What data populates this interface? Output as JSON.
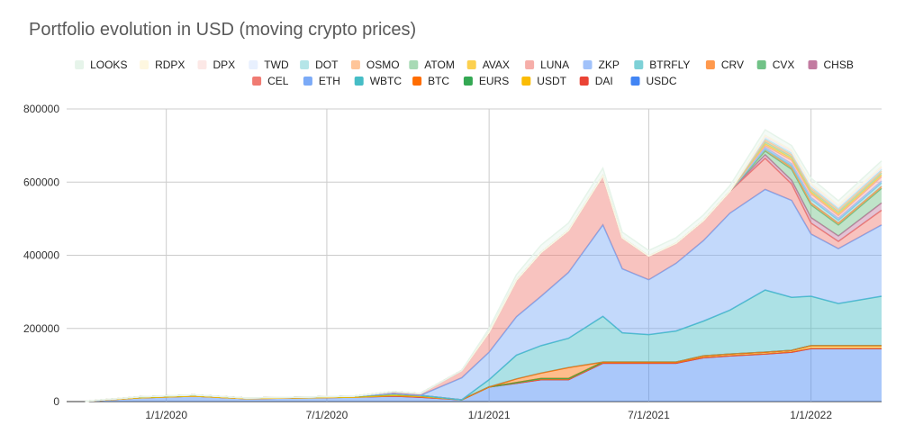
{
  "chart_data": {
    "type": "area",
    "stacked": true,
    "title": "Portfolio evolution in USD (moving crypto prices)",
    "xlabel": "",
    "ylabel": "",
    "x_range": [
      "2019-09-10",
      "2022-03-22"
    ],
    "x_ticks": [
      {
        "date": "2020-01-01",
        "label": "1/1/2020"
      },
      {
        "date": "2020-07-01",
        "label": "7/1/2020"
      },
      {
        "date": "2021-01-01",
        "label": "1/1/2021"
      },
      {
        "date": "2021-07-01",
        "label": "7/1/2021"
      },
      {
        "date": "2022-01-01",
        "label": "1/1/2022"
      }
    ],
    "ylim": [
      0,
      800000
    ],
    "y_ticks": [
      {
        "value": 0,
        "label": "0"
      },
      {
        "value": 200000,
        "label": "200000"
      },
      {
        "value": 400000,
        "label": "400000"
      },
      {
        "value": 600000,
        "label": "600000"
      },
      {
        "value": 800000,
        "label": "800000"
      }
    ],
    "grid": "vertical and horizontal",
    "legend_position": "top",
    "legend_order": [
      "LOOKS",
      "RDPX",
      "DPX",
      "TWD",
      "DOT",
      "OSMO",
      "ATOM",
      "AVAX",
      "LUNA",
      "ZKP",
      "BTRFLY",
      "CRV",
      "CVX",
      "CHSB",
      "CEL",
      "ETH",
      "WBTC",
      "BTC",
      "EURS",
      "USDT",
      "DAI",
      "USDC"
    ],
    "dates": [
      "2019-10-01",
      "2019-12-01",
      "2020-02-01",
      "2020-04-01",
      "2020-06-01",
      "2020-08-01",
      "2020-09-15",
      "2020-10-15",
      "2020-12-01",
      "2021-01-01",
      "2021-02-01",
      "2021-03-01",
      "2021-04-01",
      "2021-05-10",
      "2021-06-01",
      "2021-07-01",
      "2021-08-01",
      "2021-09-01",
      "2021-10-01",
      "2021-11-10",
      "2021-12-10",
      "2022-01-01",
      "2022-02-01",
      "2022-03-22"
    ],
    "series": [
      {
        "name": "USDC",
        "color": "#4285f4",
        "values": [
          1000,
          10000,
          15000,
          8000,
          10000,
          12000,
          15000,
          12000,
          5000,
          40000,
          50000,
          60000,
          60000,
          105000,
          105000,
          105000,
          105000,
          120000,
          125000,
          130000,
          135000,
          145000,
          145000,
          145000
        ]
      },
      {
        "name": "DAI",
        "color": "#ea4335",
        "values": [
          0,
          0,
          0,
          0,
          0,
          0,
          0,
          0,
          0,
          0,
          0,
          0,
          0,
          0,
          0,
          0,
          0,
          0,
          0,
          0,
          0,
          0,
          0,
          0
        ]
      },
      {
        "name": "USDT",
        "color": "#fbbc04",
        "values": [
          0,
          0,
          0,
          0,
          0,
          0,
          2000,
          2000,
          0,
          0,
          2000,
          3000,
          3000,
          3000,
          3000,
          3000,
          3000,
          5000,
          5000,
          5000,
          5000,
          8000,
          8000,
          8000
        ]
      },
      {
        "name": "EURS",
        "color": "#34a853",
        "values": [
          0,
          3000,
          3000,
          2000,
          2000,
          3000,
          5000,
          3000,
          0,
          0,
          0,
          0,
          0,
          0,
          0,
          0,
          0,
          0,
          0,
          0,
          0,
          0,
          0,
          0
        ]
      },
      {
        "name": "BTC",
        "color": "#ff6d01",
        "values": [
          0,
          0,
          0,
          0,
          0,
          0,
          0,
          0,
          0,
          0,
          10000,
          15000,
          30000,
          0,
          0,
          0,
          0,
          0,
          0,
          0,
          0,
          0,
          0,
          0
        ]
      },
      {
        "name": "WBTC",
        "color": "#46bdc6",
        "values": [
          0,
          0,
          0,
          0,
          0,
          0,
          0,
          0,
          0,
          20000,
          65000,
          75000,
          80000,
          125000,
          80000,
          75000,
          85000,
          95000,
          120000,
          170000,
          145000,
          135000,
          115000,
          135000
        ]
      },
      {
        "name": "ETH",
        "color": "#7baaf7",
        "values": [
          0,
          0,
          0,
          0,
          0,
          0,
          0,
          0,
          60000,
          75000,
          105000,
          135000,
          180000,
          250000,
          175000,
          150000,
          185000,
          220000,
          265000,
          275000,
          265000,
          170000,
          150000,
          195000
        ]
      },
      {
        "name": "CEL",
        "color": "#f07b72",
        "values": [
          0,
          0,
          0,
          0,
          0,
          0,
          5000,
          5000,
          20000,
          55000,
          100000,
          120000,
          115000,
          135000,
          85000,
          65000,
          55000,
          55000,
          60000,
          85000,
          45000,
          30000,
          20000,
          40000
        ]
      },
      {
        "name": "CHSB",
        "color": "#c27ba0",
        "values": [
          0,
          0,
          0,
          0,
          0,
          0,
          0,
          0,
          0,
          0,
          0,
          0,
          0,
          0,
          0,
          0,
          0,
          0,
          0,
          10000,
          10000,
          15000,
          15000,
          20000
        ]
      },
      {
        "name": "CVX",
        "color": "#71c287",
        "values": [
          0,
          0,
          0,
          0,
          0,
          0,
          0,
          0,
          0,
          0,
          0,
          0,
          0,
          0,
          0,
          0,
          0,
          0,
          0,
          10000,
          30000,
          35000,
          30000,
          40000
        ]
      },
      {
        "name": "CRV",
        "color": "#ff994d",
        "values": [
          0,
          0,
          0,
          0,
          0,
          0,
          0,
          0,
          0,
          0,
          0,
          0,
          0,
          0,
          0,
          0,
          0,
          0,
          0,
          5000,
          5000,
          5000,
          5000,
          5000
        ]
      },
      {
        "name": "BTRFLY",
        "color": "#7ed1d7",
        "values": [
          0,
          0,
          0,
          0,
          0,
          0,
          0,
          0,
          0,
          0,
          0,
          0,
          0,
          0,
          0,
          0,
          0,
          0,
          0,
          0,
          5000,
          10000,
          8000,
          10000
        ]
      },
      {
        "name": "ZKP",
        "color": "#a1c2fa",
        "values": [
          0,
          0,
          0,
          0,
          0,
          0,
          0,
          0,
          0,
          0,
          0,
          0,
          0,
          0,
          0,
          0,
          0,
          0,
          0,
          5000,
          5000,
          5000,
          5000,
          5000
        ]
      },
      {
        "name": "LUNA",
        "color": "#f6aea9",
        "values": [
          0,
          0,
          0,
          0,
          0,
          0,
          0,
          0,
          0,
          0,
          0,
          0,
          0,
          0,
          0,
          0,
          0,
          0,
          0,
          5000,
          10000,
          10000,
          8000,
          12000
        ]
      },
      {
        "name": "AVAX",
        "color": "#fcd04f",
        "values": [
          0,
          0,
          0,
          0,
          0,
          0,
          0,
          0,
          0,
          0,
          0,
          0,
          0,
          0,
          0,
          0,
          0,
          0,
          0,
          5000,
          5000,
          5000,
          5000,
          5000
        ]
      },
      {
        "name": "ATOM",
        "color": "#a8dab5",
        "values": [
          0,
          0,
          0,
          0,
          0,
          0,
          0,
          0,
          0,
          0,
          0,
          0,
          0,
          0,
          0,
          0,
          0,
          0,
          0,
          5000,
          5000,
          5000,
          5000,
          5000
        ]
      },
      {
        "name": "OSMO",
        "color": "#ffc599",
        "values": [
          0,
          0,
          0,
          0,
          0,
          0,
          0,
          0,
          0,
          0,
          0,
          0,
          0,
          0,
          0,
          0,
          0,
          0,
          0,
          5000,
          5000,
          5000,
          5000,
          5000
        ]
      },
      {
        "name": "DOT",
        "color": "#b5e5e8",
        "values": [
          0,
          0,
          0,
          0,
          0,
          0,
          0,
          0,
          0,
          0,
          0,
          0,
          0,
          0,
          0,
          0,
          0,
          0,
          0,
          5000,
          5000,
          5000,
          5000,
          5000
        ]
      },
      {
        "name": "TWD",
        "color": "#e8f0fe",
        "values": [
          0,
          0,
          0,
          0,
          0,
          0,
          0,
          0,
          0,
          0,
          0,
          0,
          0,
          0,
          0,
          0,
          0,
          0,
          0,
          3000,
          3000,
          3000,
          3000,
          3000
        ]
      },
      {
        "name": "DPX",
        "color": "#fce8e6",
        "values": [
          0,
          0,
          0,
          0,
          0,
          0,
          0,
          0,
          0,
          0,
          0,
          0,
          0,
          0,
          0,
          0,
          0,
          0,
          0,
          3000,
          3000,
          3000,
          3000,
          3000
        ]
      },
      {
        "name": "RDPX",
        "color": "#fef7e0",
        "values": [
          0,
          0,
          0,
          0,
          0,
          0,
          0,
          0,
          0,
          0,
          0,
          0,
          0,
          0,
          0,
          0,
          0,
          0,
          0,
          2000,
          2000,
          2000,
          2000,
          2000
        ]
      },
      {
        "name": "LOOKS",
        "color": "#e6f4ea",
        "values": [
          0,
          0,
          0,
          0,
          0,
          0,
          0,
          0,
          0,
          10000,
          15000,
          20000,
          20000,
          20000,
          15000,
          15000,
          15000,
          15000,
          15000,
          15000,
          12000,
          15000,
          12000,
          15000
        ]
      }
    ]
  }
}
